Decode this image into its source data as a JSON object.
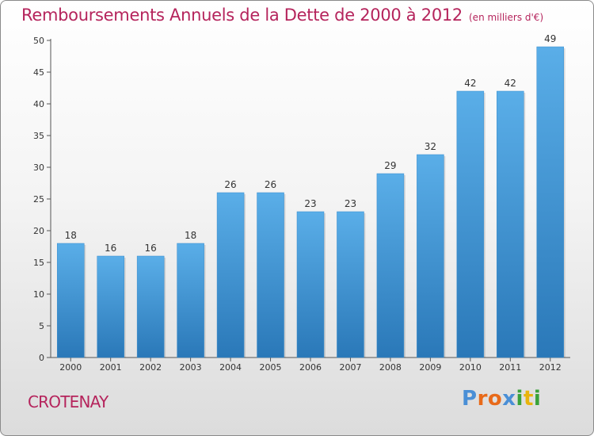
{
  "header": {
    "title": "Remboursements Annuels de la Dette de 2000 à 2012",
    "unit": "(en milliers d'€)"
  },
  "footer": {
    "place": "CROTENAY",
    "logo": "Proxiti",
    "logo_colors": [
      "#4a8fd6",
      "#e86a1a",
      "#e86a1a",
      "#4a8fd6",
      "#3aa23a",
      "#e8b40c",
      "#3aa23a"
    ]
  },
  "colors": {
    "bar_light": "#5aaee8",
    "bar_dark": "#2a78b8",
    "title": "#b5245c"
  },
  "chart_data": {
    "type": "bar",
    "title": "Remboursements Annuels de la Dette de 2000 à 2012",
    "subtitle": "(en milliers d'€)",
    "categories": [
      "2000",
      "2001",
      "2002",
      "2003",
      "2004",
      "2005",
      "2006",
      "2007",
      "2008",
      "2009",
      "2010",
      "2011",
      "2012"
    ],
    "values": [
      18,
      16,
      16,
      18,
      26,
      26,
      23,
      23,
      29,
      32,
      42,
      42,
      49
    ],
    "ylim": [
      0,
      50
    ],
    "yticks": [
      0,
      5,
      10,
      15,
      20,
      25,
      30,
      35,
      40,
      45,
      50
    ],
    "grid": false,
    "data_labels": true
  }
}
